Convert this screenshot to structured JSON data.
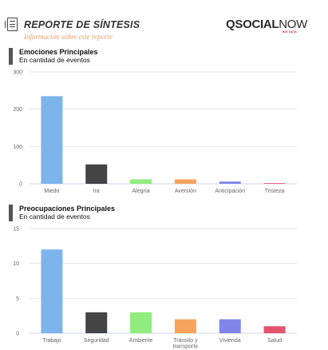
{
  "header": {
    "title": "REPORTE DE SÍNTESIS",
    "subtitle": "Información sobre este reporte",
    "logo_bold": "QSOCIAL",
    "logo_light": "NOW",
    "logo_tag": "BIG DATA"
  },
  "sections": [
    {
      "title": "Emociones Principales",
      "subtitle": "En cantidad de eventos"
    },
    {
      "title": "Preocupaciones Principales",
      "subtitle": "En cantidad de eventos"
    }
  ],
  "chart_data": [
    {
      "type": "bar",
      "title": "Emociones Principales",
      "subtitle": "En cantidad de eventos",
      "categories": [
        "Miedo",
        "Ira",
        "Alegría",
        "Aversión",
        "Anticipación",
        "Tristeza"
      ],
      "values": [
        235,
        52,
        12,
        12,
        6,
        2
      ],
      "colors": [
        "#7cb5ec",
        "#434348",
        "#90ed7d",
        "#f7a35c",
        "#8085e9",
        "#f15c80"
      ],
      "ylim": [
        0,
        300
      ],
      "yticks": [
        0,
        100,
        200,
        300
      ],
      "grid": true
    },
    {
      "type": "bar",
      "title": "Preocupaciones Principales",
      "subtitle": "En cantidad de eventos",
      "categories": [
        "Trabajo",
        "Seguridad",
        "Ambiente",
        "Tránsito y transporte",
        "Vivienda",
        "Salud"
      ],
      "values": [
        12,
        3,
        3,
        2,
        2,
        1
      ],
      "colors": [
        "#7cb5ec",
        "#434348",
        "#90ed7d",
        "#f7a35c",
        "#8085e9",
        "#e4546c"
      ],
      "ylim": [
        0,
        15
      ],
      "yticks": [
        0,
        5,
        10,
        15
      ],
      "grid": true
    }
  ]
}
